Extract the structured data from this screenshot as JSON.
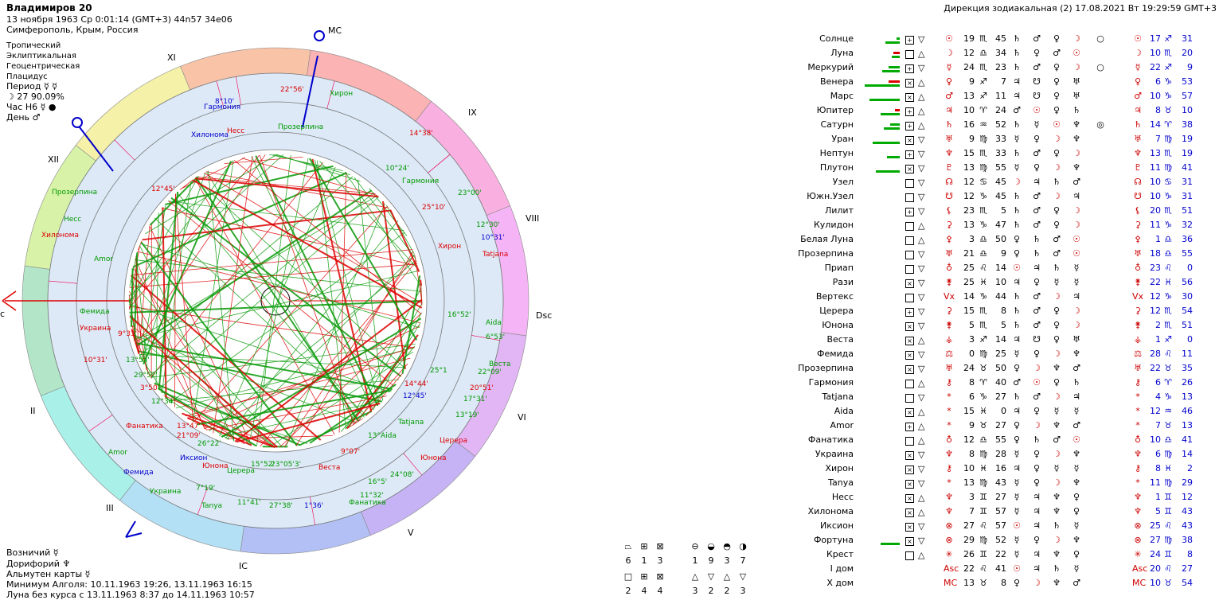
{
  "header": {
    "name": "Владимиров 20",
    "date_line": "13 ноября 1963  Ср   0:01:14 (GMT+3) 44n57  34e06",
    "place": "Симферополь, Крым, Россия"
  },
  "settings": [
    "Тропический",
    "Эклиптикальная",
    "Геоцентрическая",
    "Плацидус"
  ],
  "period": {
    "label": "Период",
    "symbols": "☿ ☿"
  },
  "moon_phase": "☽  27 90.09%",
  "hour": {
    "label": "Час H6",
    "symbol": "☿ ●"
  },
  "day": {
    "label": "День",
    "symbol": "♂"
  },
  "direction_title": "Дирекция зодиакальная (2) 17.08.2021  Вт 19:29:59 GMT+3",
  "bottom": {
    "charioteer": "Возничий  ☿",
    "doryphoros": "Дорифорий  ♆",
    "almuten": "Альмутен карты  ☿",
    "algol_min": "Минимум Алголя: 10.11.1963 19:26,  13.11.1963 16:15",
    "void_moon": "Луна без курса с 13.11.1963  8:37 до 14.11.1963 10:57"
  },
  "houses": [
    "XI",
    "IX",
    "XII",
    "VIII",
    "II",
    "VI",
    "III",
    "V",
    "IC"
  ],
  "angles": {
    "mc": "MC",
    "dsc": "Dsc",
    "ic": "IC",
    "asc": "c"
  },
  "wheel_labels": [
    {
      "t": "Гармония",
      "c": "blue"
    },
    {
      "t": "8°10'",
      "c": "blue"
    },
    {
      "t": "22°56'",
      "c": "red"
    },
    {
      "t": "Хирон",
      "c": "green"
    },
    {
      "t": "Несс",
      "c": "red"
    },
    {
      "t": "Прозерпина",
      "c": "green"
    },
    {
      "t": "Хилонома",
      "c": "blue"
    },
    {
      "t": "14°38'",
      "c": "red"
    },
    {
      "t": "10°24'",
      "c": "green"
    },
    {
      "t": "Гармония",
      "c": "green"
    },
    {
      "t": "12°45'",
      "c": "red"
    },
    {
      "t": "23°00'",
      "c": "green"
    },
    {
      "t": "25°10'",
      "c": "red"
    },
    {
      "t": "12°30'",
      "c": "green"
    },
    {
      "t": "10°31'",
      "c": "blue"
    },
    {
      "t": "Хирон",
      "c": "red"
    },
    {
      "t": "Tatjana",
      "c": "red"
    },
    {
      "t": "Прозерпина",
      "c": "green"
    },
    {
      "t": "Несс",
      "c": "green"
    },
    {
      "t": "Хилонома",
      "c": "red"
    },
    {
      "t": "Amor",
      "c": "green"
    },
    {
      "t": "Фемида",
      "c": "green"
    },
    {
      "t": "Украина",
      "c": "red"
    },
    {
      "t": "9°33'",
      "c": "red"
    },
    {
      "t": "16°52'",
      "c": "green"
    },
    {
      "t": "Aida",
      "c": "green"
    },
    {
      "t": "6°53'",
      "c": "green"
    },
    {
      "t": "10°31'",
      "c": "red"
    },
    {
      "t": "13°55'",
      "c": "green"
    },
    {
      "t": "29°52'",
      "c": "green"
    },
    {
      "t": "3°50'",
      "c": "red"
    },
    {
      "t": "12°34'",
      "c": "green"
    },
    {
      "t": "25°1",
      "c": "green"
    },
    {
      "t": "14°44'",
      "c": "red"
    },
    {
      "t": "12°45'",
      "c": "blue"
    },
    {
      "t": "22°09'",
      "c": "green"
    },
    {
      "t": "Веста",
      "c": "green"
    },
    {
      "t": "20°51'",
      "c": "red"
    },
    {
      "t": "17°31'",
      "c": "green"
    },
    {
      "t": "13°19'",
      "c": "green"
    },
    {
      "t": "Tatjana",
      "c": "green"
    },
    {
      "t": "Фанатика",
      "c": "red"
    },
    {
      "t": "13°47'",
      "c": "red"
    },
    {
      "t": "21°09'",
      "c": "red"
    },
    {
      "t": "26°22'",
      "c": "green"
    },
    {
      "t": "13°Aida",
      "c": "green"
    },
    {
      "t": "Церера",
      "c": "red"
    },
    {
      "t": "Amor",
      "c": "green"
    },
    {
      "t": "Иксион",
      "c": "blue"
    },
    {
      "t": "Юнона",
      "c": "red"
    },
    {
      "t": "15°52'",
      "c": "green"
    },
    {
      "t": "23°05'3'",
      "c": "green"
    },
    {
      "t": "Церера",
      "c": "green"
    },
    {
      "t": "Веста",
      "c": "red"
    },
    {
      "t": "9°07'",
      "c": "red"
    },
    {
      "t": "Юнона",
      "c": "red"
    },
    {
      "t": "Фемида",
      "c": "blue"
    },
    {
      "t": "7°19'",
      "c": "green"
    },
    {
      "t": "24°08'",
      "c": "green"
    },
    {
      "t": "16°5'",
      "c": "green"
    },
    {
      "t": "Украина",
      "c": "green"
    },
    {
      "t": "11°41'",
      "c": "green"
    },
    {
      "t": "11°32'",
      "c": "green"
    },
    {
      "t": "Tanya",
      "c": "green"
    },
    {
      "t": "27°38'",
      "c": "green"
    },
    {
      "t": "1°36'",
      "c": "blue"
    },
    {
      "t": "Фанатика",
      "c": "green"
    }
  ],
  "aspect_legend": {
    "top": [
      "6",
      "1",
      "3",
      "1",
      "9",
      "3",
      "7"
    ],
    "bottom": [
      "2",
      "4",
      "4",
      "3",
      "2",
      "2",
      "3"
    ]
  },
  "table_rows": [
    {
      "name": "Солнце",
      "box": "⊞",
      "tri": "▽",
      "sym": "☉",
      "deg": "19",
      "sign": "♏",
      "min": "45",
      "cols": [
        "♄",
        "♂",
        "♀",
        "☽",
        "○"
      ],
      "dsym": "☉",
      "ddeg": "17",
      "dsign": "♐",
      "dmin": "31",
      "g1": 18,
      "g2": 4,
      "r": 0
    },
    {
      "name": "Луна",
      "box": "□",
      "tri": "△",
      "sym": "☽",
      "deg": "12",
      "sign": "♎",
      "min": "34",
      "cols": [
        "♄",
        "♀",
        "♂",
        "☉",
        ""
      ],
      "dsym": "☽",
      "ddeg": "10",
      "dsign": "♏",
      "dmin": "20",
      "g1": 10,
      "g2": 0,
      "r": 8
    },
    {
      "name": "Меркурий",
      "box": "⊞",
      "tri": "▽",
      "sym": "☿",
      "deg": "24",
      "sign": "♏",
      "min": "23",
      "cols": [
        "♄",
        "♂",
        "♀",
        "☽",
        "○"
      ],
      "dsym": "☿",
      "ddeg": "22",
      "dsign": "♐",
      "dmin": "9",
      "g1": 22,
      "g2": 14,
      "r": 0
    },
    {
      "name": "Венера",
      "box": "⊠",
      "tri": "△",
      "sym": "♀",
      "deg": "9",
      "sign": "♐",
      "min": "7",
      "cols": [
        "♃",
        "☋",
        "♀",
        "♅",
        ""
      ],
      "dsym": "♀",
      "ddeg": "6",
      "dsign": "♑",
      "dmin": "53",
      "g1": 44,
      "g2": 0,
      "r": 14
    },
    {
      "name": "Марс",
      "box": "⊠",
      "tri": "△",
      "sym": "♂",
      "deg": "13",
      "sign": "♐",
      "min": "11",
      "cols": [
        "♃",
        "☋",
        "♀",
        "♅",
        ""
      ],
      "dsym": "♂",
      "ddeg": "10",
      "dsign": "♑",
      "dmin": "57",
      "g1": 38,
      "g2": 0,
      "r": 0
    },
    {
      "name": "Юпитер",
      "box": "⊞",
      "tri": "△",
      "sym": "♃",
      "deg": "10",
      "sign": "♈",
      "min": "24",
      "cols": [
        "♂",
        "☉",
        "♀",
        "♄",
        ""
      ],
      "dsym": "♃",
      "ddeg": "8",
      "dsign": "♉",
      "dmin": "10",
      "g1": 24,
      "g2": 0,
      "r": 6
    },
    {
      "name": "Сатурн",
      "box": "⊞",
      "tri": "△",
      "sym": "♄",
      "deg": "16",
      "sign": "♒",
      "min": "52",
      "cols": [
        "♄",
        "☿",
        "☉",
        "♆",
        "◎"
      ],
      "dsym": "♄",
      "ddeg": "14",
      "dsign": "♈",
      "dmin": "38",
      "g1": 20,
      "g2": 12,
      "r": 0
    },
    {
      "name": "Уран",
      "box": "⊠",
      "tri": "▽",
      "sym": "♅",
      "deg": "9",
      "sign": "♍",
      "min": "33",
      "cols": [
        "☿",
        "♀",
        "☽",
        "♆",
        ""
      ],
      "dsym": "♅",
      "ddeg": "7",
      "dsign": "♍",
      "dmin": "19",
      "g1": 34,
      "g2": 0,
      "r": 0
    },
    {
      "name": "Нептун",
      "box": "⊞",
      "tri": "▽",
      "sym": "♆",
      "deg": "15",
      "sign": "♏",
      "min": "33",
      "cols": [
        "♄",
        "♂",
        "♀",
        "☽",
        ""
      ],
      "dsym": "♆",
      "ddeg": "13",
      "dsign": "♏",
      "dmin": "19",
      "g1": 16,
      "g2": 0,
      "r": 0
    },
    {
      "name": "Плутон",
      "box": "⊠",
      "tri": "▽",
      "sym": "♇",
      "deg": "13",
      "sign": "♍",
      "min": "55",
      "cols": [
        "☿",
        "♀",
        "☽",
        "♆",
        ""
      ],
      "dsym": "♇",
      "ddeg": "11",
      "dsign": "♍",
      "dmin": "41",
      "g1": 30,
      "g2": 0,
      "r": 0
    },
    {
      "name": "Узел",
      "box": "□",
      "tri": "▽",
      "sym": "☊",
      "deg": "12",
      "sign": "♋",
      "min": "45",
      "cols": [
        "☽",
        "♃",
        "♄",
        "♂",
        ""
      ],
      "dsym": "☊",
      "ddeg": "10",
      "dsign": "♋",
      "dmin": "31",
      "g1": 0,
      "g2": 0,
      "r": 0
    },
    {
      "name": "Южн.Узел",
      "box": "□",
      "tri": "▽",
      "sym": "☋",
      "deg": "12",
      "sign": "♑",
      "min": "45",
      "cols": [
        "♄",
        "♂",
        "☽",
        "♃",
        ""
      ],
      "dsym": "☋",
      "ddeg": "10",
      "dsign": "♑",
      "dmin": "31",
      "g1": 0,
      "g2": 0,
      "r": 0
    },
    {
      "name": "Лилит",
      "box": "⊞",
      "tri": "▽",
      "sym": "⚸",
      "deg": "23",
      "sign": "♏",
      "min": "5",
      "cols": [
        "♄",
        "♂",
        "♀",
        "☽",
        ""
      ],
      "dsym": "⚸",
      "ddeg": "20",
      "dsign": "♏",
      "dmin": "51",
      "g1": 0,
      "g2": 0,
      "r": 0
    },
    {
      "name": "Кулидон",
      "box": "□",
      "tri": "△",
      "sym": "⚳",
      "deg": "13",
      "sign": "♑",
      "min": "47",
      "cols": [
        "♄",
        "♂",
        "♀",
        "☽",
        ""
      ],
      "dsym": "⚳",
      "ddeg": "11",
      "dsign": "♑",
      "dmin": "32",
      "g1": 0,
      "g2": 0,
      "r": 0
    },
    {
      "name": "Белая Луна",
      "box": "□",
      "tri": "△",
      "sym": "⚴",
      "deg": "3",
      "sign": "♎",
      "min": "50",
      "cols": [
        "♀",
        "♄",
        "♂",
        "☉",
        ""
      ],
      "dsym": "⚴",
      "ddeg": "1",
      "dsign": "♎",
      "dmin": "36",
      "g1": 0,
      "g2": 0,
      "r": 0
    },
    {
      "name": "Прозерпина",
      "box": "□",
      "tri": "▽",
      "sym": "♅",
      "deg": "21",
      "sign": "♎",
      "min": "9",
      "cols": [
        "♀",
        "♄",
        "♂",
        "☉",
        ""
      ],
      "dsym": "♅",
      "ddeg": "18",
      "dsign": "♎",
      "dmin": "55",
      "g1": 0,
      "g2": 0,
      "r": 0
    },
    {
      "name": "Приап",
      "box": "□",
      "tri": "▽",
      "sym": "♁",
      "deg": "25",
      "sign": "♌",
      "min": "14",
      "cols": [
        "☉",
        "♃",
        "♄",
        "☿",
        ""
      ],
      "dsym": "♁",
      "ddeg": "23",
      "dsign": "♌",
      "dmin": "0",
      "g1": 0,
      "g2": 0,
      "r": 0
    },
    {
      "name": "Рази",
      "box": "⊠",
      "tri": "▽",
      "sym": "⚵",
      "deg": "25",
      "sign": "♓",
      "min": "10",
      "cols": [
        "♃",
        "♀",
        "☿",
        "☿",
        ""
      ],
      "dsym": "⚵",
      "ddeg": "22",
      "dsign": "♓",
      "dmin": "56",
      "g1": 0,
      "g2": 0,
      "r": 0
    },
    {
      "name": "Вертекс",
      "box": "□",
      "tri": "▽",
      "sym": "Vx",
      "deg": "14",
      "sign": "♑",
      "min": "44",
      "cols": [
        "♄",
        "♂",
        "☽",
        "♃",
        ""
      ],
      "dsym": "Vx",
      "ddeg": "12",
      "dsign": "♑",
      "dmin": "30",
      "g1": 0,
      "g2": 0,
      "r": 0
    },
    {
      "name": "Церера",
      "box": "⊞",
      "tri": "▽",
      "sym": "⚳",
      "deg": "15",
      "sign": "♏",
      "min": "8",
      "cols": [
        "♄",
        "♂",
        "♀",
        "☽",
        ""
      ],
      "dsym": "⚳",
      "ddeg": "12",
      "dsign": "♏",
      "dmin": "54",
      "g1": 0,
      "g2": 0,
      "r": 0
    },
    {
      "name": "Юнона",
      "box": "⊠",
      "tri": "▽",
      "sym": "⚵",
      "deg": "5",
      "sign": "♏",
      "min": "5",
      "cols": [
        "♄",
        "♂",
        "♀",
        "☽",
        ""
      ],
      "dsym": "⚵",
      "ddeg": "2",
      "dsign": "♏",
      "dmin": "51",
      "g1": 0,
      "g2": 0,
      "r": 0
    },
    {
      "name": "Веста",
      "box": "⊠",
      "tri": "△",
      "sym": "⚶",
      "deg": "3",
      "sign": "♐",
      "min": "14",
      "cols": [
        "♃",
        "☋",
        "♀",
        "♅",
        ""
      ],
      "dsym": "⚶",
      "ddeg": "1",
      "dsign": "♐",
      "dmin": "0",
      "g1": 0,
      "g2": 0,
      "r": 0
    },
    {
      "name": "Фемида",
      "box": "⊠",
      "tri": "▽",
      "sym": "⚖",
      "deg": "0",
      "sign": "♍",
      "min": "25",
      "cols": [
        "☿",
        "♀",
        "☽",
        "♆",
        ""
      ],
      "dsym": "⚖",
      "ddeg": "28",
      "dsign": "♌",
      "dmin": "11",
      "g1": 0,
      "g2": 0,
      "r": 0
    },
    {
      "name": "Прозерпина",
      "box": "⊠",
      "tri": "▽",
      "sym": "♅",
      "deg": "24",
      "sign": "♉",
      "min": "50",
      "cols": [
        "♀",
        "☽",
        "♆",
        "♂",
        ""
      ],
      "dsym": "♅",
      "ddeg": "22",
      "dsign": "♉",
      "dmin": "35",
      "g1": 0,
      "g2": 0,
      "r": 0
    },
    {
      "name": "Гармония",
      "box": "□",
      "tri": "△",
      "sym": "⚷",
      "deg": "8",
      "sign": "♈",
      "min": "40",
      "cols": [
        "♂",
        "☉",
        "♀",
        "♄",
        ""
      ],
      "dsym": "⚷",
      "ddeg": "6",
      "dsign": "♈",
      "dmin": "26",
      "g1": 0,
      "g2": 0,
      "r": 0
    },
    {
      "name": "Tatjana",
      "box": "□",
      "tri": "▽",
      "sym": "*",
      "deg": "6",
      "sign": "♑",
      "min": "27",
      "cols": [
        "♄",
        "♂",
        "☽",
        "♃",
        ""
      ],
      "dsym": "*",
      "ddeg": "4",
      "dsign": "♑",
      "dmin": "13",
      "g1": 0,
      "g2": 0,
      "r": 0
    },
    {
      "name": "Aida",
      "box": "⊠",
      "tri": "△",
      "sym": "*",
      "deg": "15",
      "sign": "♓",
      "min": "0",
      "cols": [
        "♃",
        "♀",
        "☿",
        "☿",
        ""
      ],
      "dsym": "*",
      "ddeg": "12",
      "dsign": "♒",
      "dmin": "46",
      "g1": 0,
      "g2": 0,
      "r": 0
    },
    {
      "name": "Amor",
      "box": "⊞",
      "tri": "△",
      "sym": "*",
      "deg": "9",
      "sign": "♉",
      "min": "27",
      "cols": [
        "♀",
        "☽",
        "♆",
        "♂",
        ""
      ],
      "dsym": "*",
      "ddeg": "7",
      "dsign": "♉",
      "dmin": "13",
      "g1": 0,
      "g2": 0,
      "r": 0
    },
    {
      "name": "Фанатика",
      "box": "□",
      "tri": "△",
      "sym": "♁",
      "deg": "12",
      "sign": "♎",
      "min": "55",
      "cols": [
        "♀",
        "♄",
        "♂",
        "☉",
        ""
      ],
      "dsym": "♁",
      "ddeg": "10",
      "dsign": "♎",
      "dmin": "41",
      "g1": 0,
      "g2": 0,
      "r": 0
    },
    {
      "name": "Украина",
      "box": "⊠",
      "tri": "▽",
      "sym": "♆",
      "deg": "8",
      "sign": "♍",
      "min": "28",
      "cols": [
        "☿",
        "♀",
        "☽",
        "♆",
        ""
      ],
      "dsym": "♆",
      "ddeg": "6",
      "dsign": "♍",
      "dmin": "14",
      "g1": 0,
      "g2": 0,
      "r": 0
    },
    {
      "name": "Хирон",
      "box": "⊠",
      "tri": "▽",
      "sym": "⚷",
      "deg": "10",
      "sign": "♓",
      "min": "16",
      "cols": [
        "♃",
        "♀",
        "☿",
        "☿",
        ""
      ],
      "dsym": "⚷",
      "ddeg": "8",
      "dsign": "♓",
      "dmin": "2",
      "g1": 0,
      "g2": 0,
      "r": 0
    },
    {
      "name": "Tanya",
      "box": "⊠",
      "tri": "▽",
      "sym": "*",
      "deg": "13",
      "sign": "♍",
      "min": "43",
      "cols": [
        "☿",
        "♀",
        "☽",
        "♆",
        ""
      ],
      "dsym": "*",
      "ddeg": "11",
      "dsign": "♍",
      "dmin": "29",
      "g1": 0,
      "g2": 0,
      "r": 0
    },
    {
      "name": "Несс",
      "box": "⊠",
      "tri": "△",
      "sym": "♆",
      "deg": "3",
      "sign": "♊",
      "min": "27",
      "cols": [
        "☿",
        "♃",
        "♆",
        "♀",
        ""
      ],
      "dsym": "♆",
      "ddeg": "1",
      "dsign": "♊",
      "dmin": "12",
      "g1": 0,
      "g2": 0,
      "r": 0
    },
    {
      "name": "Хилонома",
      "box": "⊠",
      "tri": "△",
      "sym": "♆",
      "deg": "7",
      "sign": "♊",
      "min": "57",
      "cols": [
        "☿",
        "♃",
        "♆",
        "♀",
        ""
      ],
      "dsym": "♆",
      "ddeg": "5",
      "dsign": "♊",
      "dmin": "43",
      "g1": 0,
      "g2": 0,
      "r": 0
    },
    {
      "name": "Иксион",
      "box": "⊠",
      "tri": "▽",
      "sym": "⊗",
      "deg": "27",
      "sign": "♌",
      "min": "57",
      "cols": [
        "☉",
        "♃",
        "♄",
        "☿",
        ""
      ],
      "dsym": "⊗",
      "ddeg": "25",
      "dsign": "♌",
      "dmin": "43",
      "g1": 0,
      "g2": 0,
      "r": 0
    },
    {
      "name": "Фортуна",
      "box": "⊠",
      "tri": "▽",
      "sym": "⊗",
      "deg": "29",
      "sign": "♍",
      "min": "52",
      "cols": [
        "☿",
        "♀",
        "☽",
        "♆",
        ""
      ],
      "dsym": "⊗",
      "ddeg": "27",
      "dsign": "♍",
      "dmin": "38",
      "g1": 24,
      "g2": 0,
      "r": 0
    },
    {
      "name": "Крест",
      "box": "□",
      "tri": "△",
      "sym": "✳",
      "deg": "26",
      "sign": "♊",
      "min": "22",
      "cols": [
        "☿",
        "♃",
        "♆",
        "♀",
        ""
      ],
      "dsym": "✳",
      "ddeg": "24",
      "dsign": "♊",
      "dmin": "8",
      "g1": 0,
      "g2": 0,
      "r": 0
    },
    {
      "name": "I дом",
      "box": "",
      "tri": "",
      "sym": "Asc",
      "deg": "22",
      "sign": "♌",
      "min": "41",
      "cols": [
        "☉",
        "♃",
        "♄",
        "☿",
        ""
      ],
      "dsym": "Asc",
      "ddeg": "20",
      "dsign": "♌",
      "dmin": "27",
      "g1": 0,
      "g2": 0,
      "r": 0
    },
    {
      "name": "X дом",
      "box": "",
      "tri": "",
      "sym": "MC",
      "deg": "13",
      "sign": "♉",
      "min": "8",
      "cols": [
        "♀",
        "☽",
        "♆",
        "♂",
        ""
      ],
      "dsym": "MC",
      "ddeg": "10",
      "dsign": "♉",
      "dmin": "54",
      "g1": 0,
      "g2": 0,
      "r": 0
    }
  ],
  "colors": {
    "green": "#009900",
    "red": "#dd0000",
    "blue": "#0000cc"
  }
}
